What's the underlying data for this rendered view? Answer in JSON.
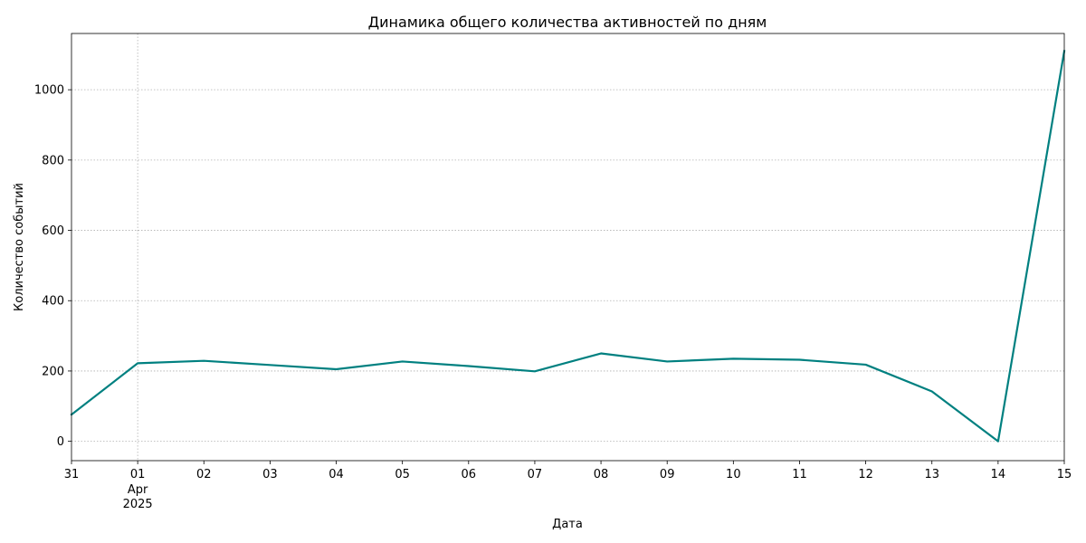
{
  "chart_data": {
    "type": "line",
    "title": "Динамика общего количества активностей по дням",
    "xlabel": "Дата",
    "ylabel": "Количество событий",
    "x": [
      "2025-03-31",
      "2025-04-01",
      "2025-04-02",
      "2025-04-03",
      "2025-04-04",
      "2025-04-05",
      "2025-04-06",
      "2025-04-07",
      "2025-04-08",
      "2025-04-09",
      "2025-04-10",
      "2025-04-11",
      "2025-04-12",
      "2025-04-13",
      "2025-04-14",
      "2025-04-15"
    ],
    "x_tick_labels": [
      "31",
      "01",
      "02",
      "03",
      "04",
      "05",
      "06",
      "07",
      "08",
      "09",
      "10",
      "11",
      "12",
      "13",
      "14",
      "15"
    ],
    "x_tick_sublabels": [
      {
        "tick": "01",
        "lines": [
          "Apr",
          "2025"
        ]
      }
    ],
    "series": [
      {
        "values": [
          76,
          222,
          229,
          217,
          205,
          227,
          214,
          199,
          250,
          227,
          235,
          232,
          218,
          142,
          0,
          1110
        ],
        "color": "#008080"
      }
    ],
    "ylim": [
      -55,
      1160
    ],
    "y_ticks": [
      0,
      200,
      400,
      600,
      800,
      1000
    ],
    "grid": true,
    "legend": "none"
  }
}
